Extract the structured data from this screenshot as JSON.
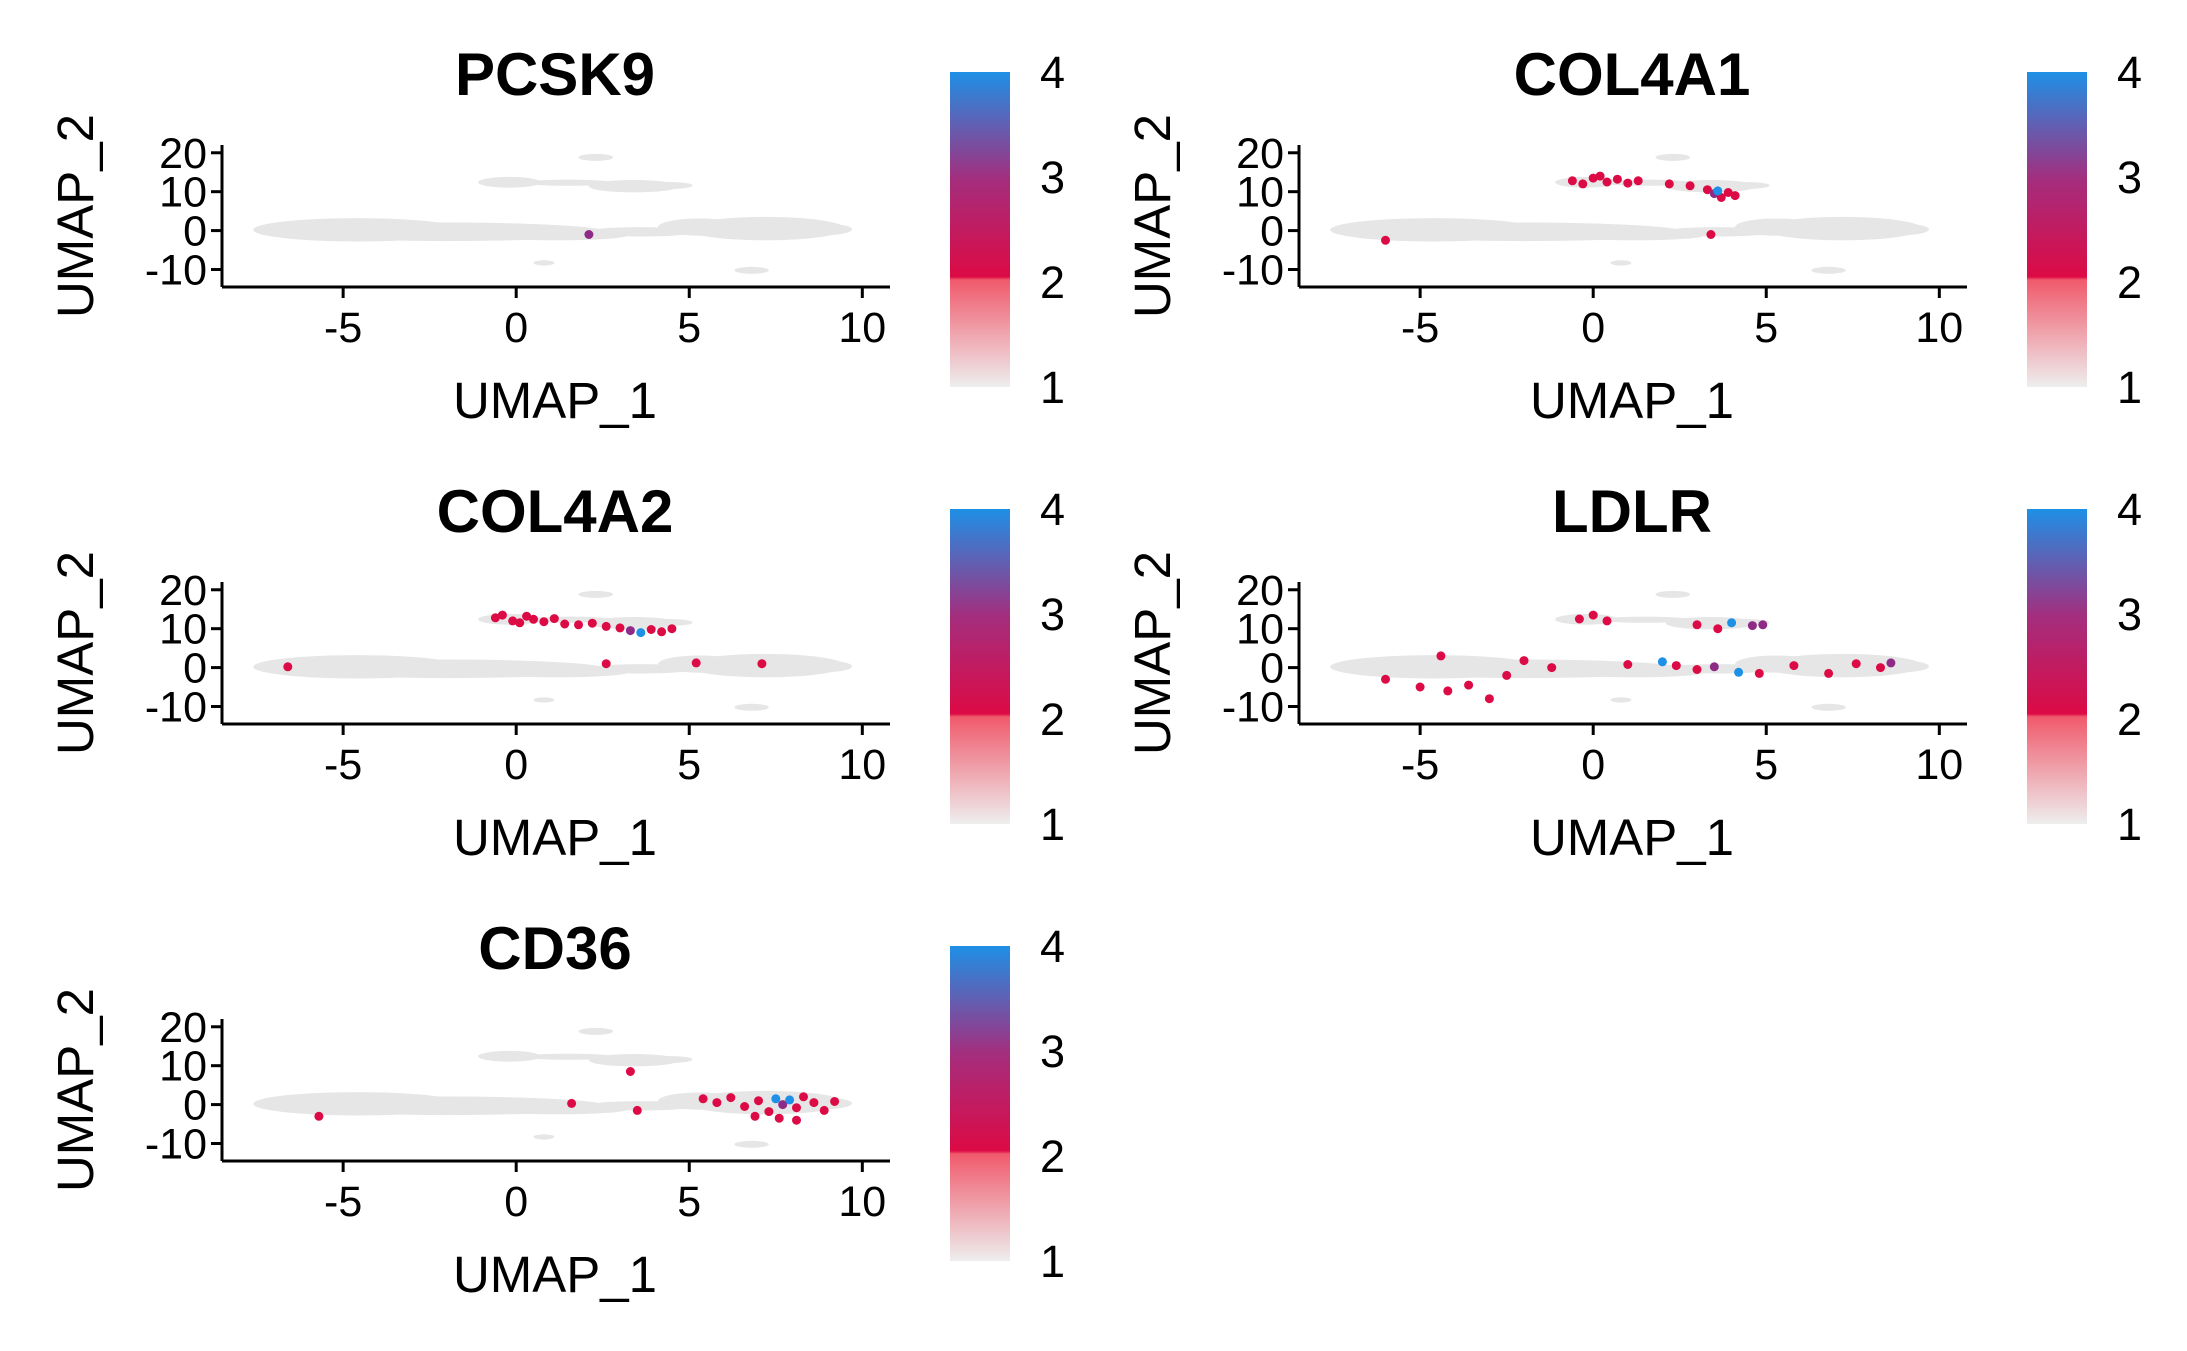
{
  "colors": {
    "background_cells": "#e6e6e6",
    "low": "#eeeeee",
    "mid_low": "#f05a6c",
    "mid": "#dc0a45",
    "mid_high": "#8e2b87",
    "high": "#1e90e6"
  },
  "chart_data": [
    {
      "type": "scatter",
      "title": "PCSK9",
      "xlabel": "UMAP_1",
      "ylabel": "UMAP_2",
      "xlim": [
        -8.5,
        10.8
      ],
      "ylim": [
        -14.5,
        22
      ],
      "x_ticks": [
        -5,
        0,
        5,
        10
      ],
      "x_tick_labels": [
        "-5",
        "0",
        "5",
        "10"
      ],
      "y_ticks": [
        -10,
        0,
        10,
        20
      ],
      "y_tick_labels": [
        "-10",
        "0",
        "10",
        "20"
      ],
      "grid": false,
      "legend": {
        "position": "right",
        "ticks": [
          1,
          2,
          3,
          4
        ],
        "tick_labels": [
          "1",
          "2",
          "3",
          "4"
        ]
      },
      "points": [
        {
          "x": 2.1,
          "y": -1.0,
          "value": 3
        }
      ]
    },
    {
      "type": "scatter",
      "title": "COL4A1",
      "xlabel": "UMAP_1",
      "ylabel": "UMAP_2",
      "xlim": [
        -8.5,
        10.8
      ],
      "ylim": [
        -14.5,
        22
      ],
      "x_ticks": [
        -5,
        0,
        5,
        10
      ],
      "x_tick_labels": [
        "-5",
        "0",
        "5",
        "10"
      ],
      "y_ticks": [
        -10,
        0,
        10,
        20
      ],
      "y_tick_labels": [
        "-10",
        "0",
        "10",
        "20"
      ],
      "grid": false,
      "legend": {
        "position": "right",
        "ticks": [
          1,
          2,
          3,
          4
        ],
        "tick_labels": [
          "1",
          "2",
          "3",
          "4"
        ]
      },
      "points": [
        {
          "x": -0.6,
          "y": 12.8,
          "value": 2
        },
        {
          "x": -0.3,
          "y": 12.0,
          "value": 2
        },
        {
          "x": 0.0,
          "y": 13.5,
          "value": 2
        },
        {
          "x": 0.2,
          "y": 14.0,
          "value": 2
        },
        {
          "x": 0.4,
          "y": 12.5,
          "value": 2
        },
        {
          "x": 0.7,
          "y": 13.2,
          "value": 2
        },
        {
          "x": 1.0,
          "y": 12.2,
          "value": 2
        },
        {
          "x": 1.3,
          "y": 12.8,
          "value": 2
        },
        {
          "x": 2.2,
          "y": 12.0,
          "value": 2
        },
        {
          "x": 2.8,
          "y": 11.5,
          "value": 2
        },
        {
          "x": 3.3,
          "y": 10.5,
          "value": 2
        },
        {
          "x": 3.5,
          "y": 9.5,
          "value": 3
        },
        {
          "x": 3.7,
          "y": 8.5,
          "value": 2
        },
        {
          "x": 3.9,
          "y": 9.8,
          "value": 2
        },
        {
          "x": 4.1,
          "y": 9.0,
          "value": 2
        },
        {
          "x": 3.6,
          "y": 10.2,
          "value": 4
        },
        {
          "x": 3.4,
          "y": -1.0,
          "value": 2
        },
        {
          "x": -6.0,
          "y": -2.5,
          "value": 2
        }
      ]
    },
    {
      "type": "scatter",
      "title": "COL4A2",
      "xlabel": "UMAP_1",
      "ylabel": "UMAP_2",
      "xlim": [
        -8.5,
        10.8
      ],
      "ylim": [
        -14.5,
        22
      ],
      "x_ticks": [
        -5,
        0,
        5,
        10
      ],
      "x_tick_labels": [
        "-5",
        "0",
        "5",
        "10"
      ],
      "y_ticks": [
        -10,
        0,
        10,
        20
      ],
      "y_tick_labels": [
        "-10",
        "0",
        "10",
        "20"
      ],
      "grid": false,
      "legend": {
        "position": "right",
        "ticks": [
          1,
          2,
          3,
          4
        ],
        "tick_labels": [
          "1",
          "2",
          "3",
          "4"
        ]
      },
      "points": [
        {
          "x": -0.6,
          "y": 12.8,
          "value": 2
        },
        {
          "x": -0.4,
          "y": 13.5,
          "value": 2
        },
        {
          "x": -0.1,
          "y": 12.0,
          "value": 2
        },
        {
          "x": 0.1,
          "y": 11.5,
          "value": 2
        },
        {
          "x": 0.3,
          "y": 13.2,
          "value": 2
        },
        {
          "x": 0.5,
          "y": 12.4,
          "value": 2
        },
        {
          "x": 0.8,
          "y": 11.8,
          "value": 2
        },
        {
          "x": 1.1,
          "y": 12.6,
          "value": 2
        },
        {
          "x": 1.4,
          "y": 11.2,
          "value": 2
        },
        {
          "x": 1.8,
          "y": 11.0,
          "value": 2
        },
        {
          "x": 2.2,
          "y": 11.4,
          "value": 2
        },
        {
          "x": 2.6,
          "y": 10.6,
          "value": 2
        },
        {
          "x": 3.0,
          "y": 10.2,
          "value": 2
        },
        {
          "x": 3.3,
          "y": 9.5,
          "value": 3
        },
        {
          "x": 3.6,
          "y": 9.0,
          "value": 4
        },
        {
          "x": 3.9,
          "y": 9.8,
          "value": 2
        },
        {
          "x": 4.2,
          "y": 9.2,
          "value": 2
        },
        {
          "x": 4.5,
          "y": 10.0,
          "value": 2
        },
        {
          "x": 2.6,
          "y": 1.0,
          "value": 2
        },
        {
          "x": 5.2,
          "y": 1.2,
          "value": 2
        },
        {
          "x": 7.1,
          "y": 1.0,
          "value": 2
        },
        {
          "x": -6.6,
          "y": 0.2,
          "value": 2
        }
      ]
    },
    {
      "type": "scatter",
      "title": "LDLR",
      "xlabel": "UMAP_1",
      "ylabel": "UMAP_2",
      "xlim": [
        -8.5,
        10.8
      ],
      "ylim": [
        -14.5,
        22
      ],
      "x_ticks": [
        -5,
        0,
        5,
        10
      ],
      "x_tick_labels": [
        "-5",
        "0",
        "5",
        "10"
      ],
      "y_ticks": [
        -10,
        0,
        10,
        20
      ],
      "y_tick_labels": [
        "-10",
        "0",
        "10",
        "20"
      ],
      "grid": false,
      "legend": {
        "position": "right",
        "ticks": [
          1,
          2,
          3,
          4
        ],
        "tick_labels": [
          "1",
          "2",
          "3",
          "4"
        ]
      },
      "points": [
        {
          "x": -0.4,
          "y": 12.5,
          "value": 2
        },
        {
          "x": 0.0,
          "y": 13.5,
          "value": 2
        },
        {
          "x": 0.4,
          "y": 12.0,
          "value": 2
        },
        {
          "x": 3.0,
          "y": 11.0,
          "value": 2
        },
        {
          "x": 3.6,
          "y": 10.0,
          "value": 2
        },
        {
          "x": 4.0,
          "y": 11.5,
          "value": 4
        },
        {
          "x": 4.6,
          "y": 10.8,
          "value": 3
        },
        {
          "x": 4.9,
          "y": 11.0,
          "value": 3
        },
        {
          "x": 2.0,
          "y": 1.5,
          "value": 4
        },
        {
          "x": 2.4,
          "y": 0.5,
          "value": 2
        },
        {
          "x": 3.0,
          "y": -0.5,
          "value": 2
        },
        {
          "x": 3.5,
          "y": 0.2,
          "value": 3
        },
        {
          "x": 4.2,
          "y": -1.2,
          "value": 4
        },
        {
          "x": 4.8,
          "y": -1.5,
          "value": 2
        },
        {
          "x": 1.0,
          "y": 0.8,
          "value": 2
        },
        {
          "x": -1.2,
          "y": 0.0,
          "value": 2
        },
        {
          "x": -2.5,
          "y": -2.0,
          "value": 2
        },
        {
          "x": -3.6,
          "y": -4.5,
          "value": 2
        },
        {
          "x": -4.2,
          "y": -6.0,
          "value": 2
        },
        {
          "x": -3.0,
          "y": -8.0,
          "value": 2
        },
        {
          "x": -5.0,
          "y": -5.0,
          "value": 2
        },
        {
          "x": -6.0,
          "y": -3.0,
          "value": 2
        },
        {
          "x": -4.4,
          "y": 3.0,
          "value": 2
        },
        {
          "x": -2.0,
          "y": 1.8,
          "value": 2
        },
        {
          "x": 5.8,
          "y": 0.5,
          "value": 2
        },
        {
          "x": 7.6,
          "y": 1.0,
          "value": 2
        },
        {
          "x": 8.3,
          "y": 0.0,
          "value": 2
        },
        {
          "x": 6.8,
          "y": -1.5,
          "value": 2
        },
        {
          "x": 8.6,
          "y": 1.2,
          "value": 3
        }
      ]
    },
    {
      "type": "scatter",
      "title": "CD36",
      "xlabel": "UMAP_1",
      "ylabel": "UMAP_2",
      "xlim": [
        -8.5,
        10.8
      ],
      "ylim": [
        -14.5,
        22
      ],
      "x_ticks": [
        -5,
        0,
        5,
        10
      ],
      "x_tick_labels": [
        "-5",
        "0",
        "5",
        "10"
      ],
      "y_ticks": [
        -10,
        0,
        10,
        20
      ],
      "y_tick_labels": [
        "-10",
        "0",
        "10",
        "20"
      ],
      "grid": false,
      "legend": {
        "position": "right",
        "ticks": [
          1,
          2,
          3,
          4
        ],
        "tick_labels": [
          "1",
          "2",
          "3",
          "4"
        ]
      },
      "points": [
        {
          "x": 5.4,
          "y": 1.5,
          "value": 2
        },
        {
          "x": 5.8,
          "y": 0.5,
          "value": 2
        },
        {
          "x": 6.2,
          "y": 1.8,
          "value": 2
        },
        {
          "x": 6.6,
          "y": -0.5,
          "value": 2
        },
        {
          "x": 7.0,
          "y": 1.0,
          "value": 2
        },
        {
          "x": 7.3,
          "y": -1.8,
          "value": 2
        },
        {
          "x": 7.5,
          "y": 1.5,
          "value": 4
        },
        {
          "x": 7.7,
          "y": 0.0,
          "value": 3
        },
        {
          "x": 7.9,
          "y": 1.2,
          "value": 4
        },
        {
          "x": 8.1,
          "y": -0.8,
          "value": 2
        },
        {
          "x": 8.3,
          "y": 2.0,
          "value": 2
        },
        {
          "x": 8.6,
          "y": 0.5,
          "value": 2
        },
        {
          "x": 8.9,
          "y": -1.5,
          "value": 2
        },
        {
          "x": 9.2,
          "y": 0.8,
          "value": 2
        },
        {
          "x": 6.9,
          "y": -3.0,
          "value": 2
        },
        {
          "x": 7.6,
          "y": -3.5,
          "value": 2
        },
        {
          "x": 8.1,
          "y": -4.0,
          "value": 2
        },
        {
          "x": 3.5,
          "y": -1.5,
          "value": 2
        },
        {
          "x": 3.3,
          "y": 8.5,
          "value": 2
        },
        {
          "x": -5.7,
          "y": -3.0,
          "value": 2
        },
        {
          "x": 1.6,
          "y": 0.3,
          "value": 2
        }
      ]
    }
  ]
}
